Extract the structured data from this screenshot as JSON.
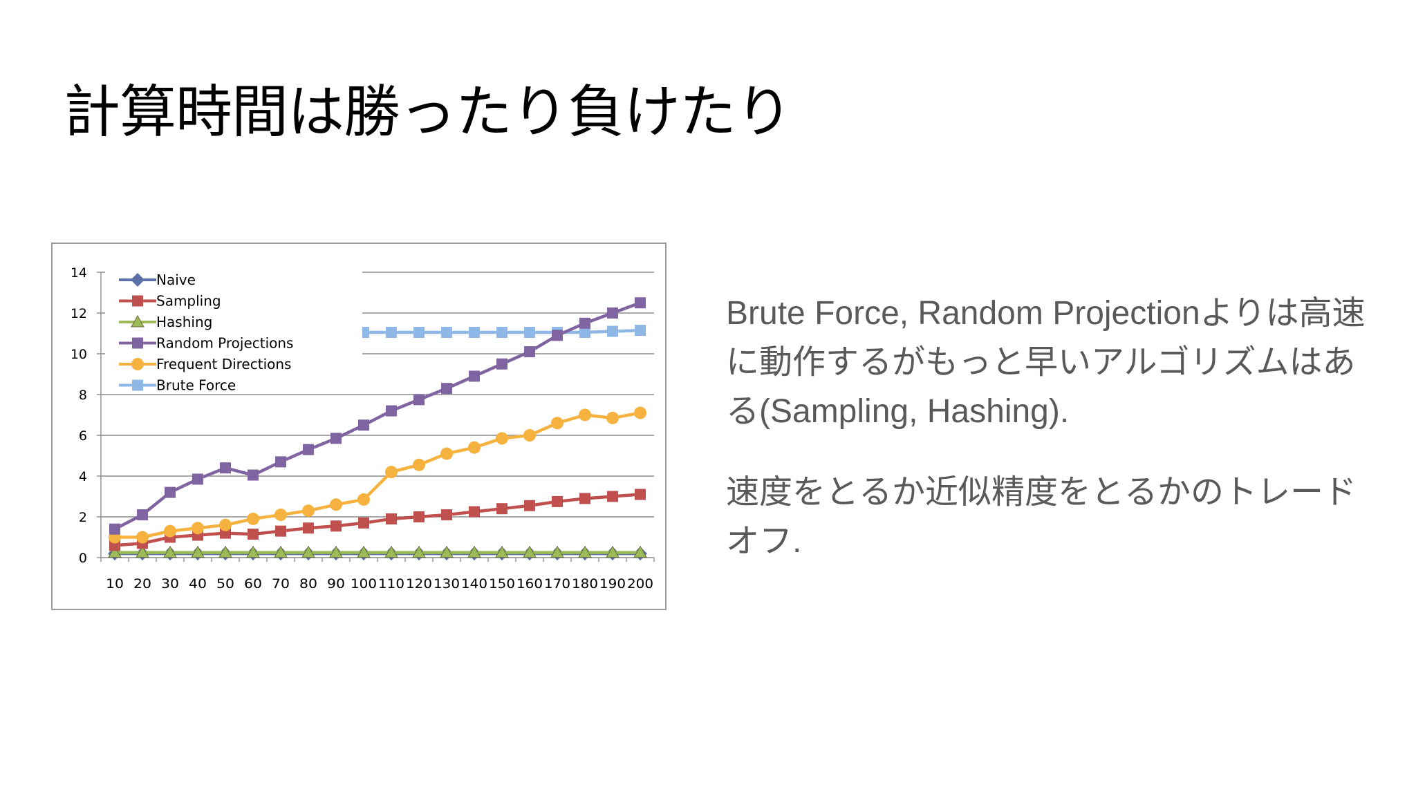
{
  "slide": {
    "title": "計算時間は勝ったり負けたり",
    "paragraphs": [
      "Brute Force, Random Projectionよりは高速に動作するがもっと早いアルゴリズムはある(Sampling, Hashing).",
      "速度をとるか近似精度をとるかのトレードオフ."
    ]
  },
  "chart_data": {
    "type": "line",
    "title": "",
    "xlabel": "",
    "ylabel": "",
    "categories": [
      "10",
      "20",
      "30",
      "40",
      "50",
      "60",
      "70",
      "80",
      "90",
      "100",
      "110",
      "120",
      "130",
      "140",
      "150",
      "160",
      "170",
      "180",
      "190",
      "200"
    ],
    "ylim": [
      0,
      14
    ],
    "yticks": [
      0,
      2,
      4,
      6,
      8,
      10,
      12,
      14
    ],
    "grid": true,
    "legend_position": "top-left",
    "series": [
      {
        "name": "Naive",
        "color": "#5b70a6",
        "marker": "diamond",
        "values": [
          0.2,
          0.2,
          0.2,
          0.2,
          0.2,
          0.2,
          0.2,
          0.2,
          0.2,
          0.2,
          0.2,
          0.2,
          0.2,
          0.2,
          0.2,
          0.2,
          0.2,
          0.2,
          0.2,
          0.2
        ]
      },
      {
        "name": "Sampling",
        "color": "#c0504d",
        "marker": "square",
        "values": [
          0.6,
          0.7,
          1.0,
          1.1,
          1.2,
          1.15,
          1.3,
          1.45,
          1.55,
          1.7,
          1.9,
          2.0,
          2.1,
          2.25,
          2.4,
          2.55,
          2.75,
          2.9,
          3.0,
          3.1
        ]
      },
      {
        "name": "Hashing",
        "color": "#9bbb59",
        "marker": "triangle",
        "values": [
          0.25,
          0.25,
          0.25,
          0.25,
          0.25,
          0.25,
          0.25,
          0.25,
          0.25,
          0.25,
          0.25,
          0.25,
          0.25,
          0.25,
          0.25,
          0.25,
          0.25,
          0.25,
          0.25,
          0.25
        ]
      },
      {
        "name": "Random Projections",
        "color": "#8064a2",
        "marker": "square",
        "values": [
          1.4,
          2.1,
          3.2,
          3.85,
          4.4,
          4.05,
          4.7,
          5.3,
          5.85,
          6.5,
          7.2,
          7.75,
          8.3,
          8.9,
          9.5,
          10.1,
          10.9,
          11.5,
          12.0,
          12.5
        ]
      },
      {
        "name": "Frequent Directions",
        "color": "#f6b23e",
        "marker": "circle",
        "values": [
          1.0,
          1.0,
          1.3,
          1.45,
          1.6,
          1.9,
          2.1,
          2.3,
          2.6,
          2.85,
          4.2,
          4.55,
          5.1,
          5.4,
          5.85,
          6.0,
          6.6,
          7.0,
          6.85,
          7.1
        ]
      },
      {
        "name": "Brute Force",
        "color": "#8fb7e6",
        "marker": "square",
        "values": [
          null,
          null,
          null,
          null,
          null,
          null,
          null,
          11.05,
          11.05,
          11.05,
          11.05,
          11.05,
          11.05,
          11.05,
          11.05,
          11.05,
          11.05,
          11.05,
          11.1,
          11.15
        ]
      }
    ]
  }
}
